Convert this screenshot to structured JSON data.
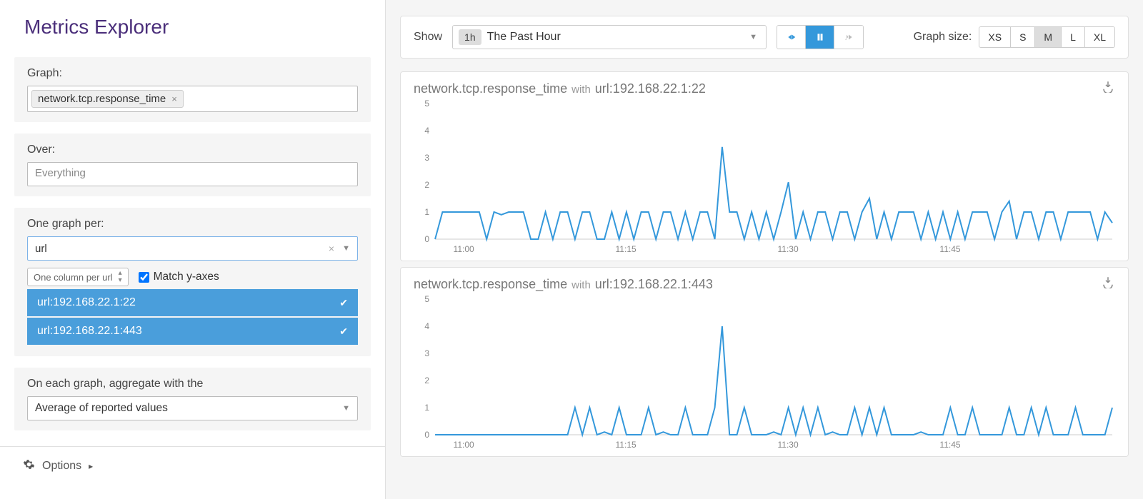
{
  "page_title": "Metrics Explorer",
  "sidebar": {
    "graph": {
      "label": "Graph:",
      "metric_tag": "network.tcp.response_time"
    },
    "over": {
      "label": "Over:",
      "placeholder": "Everything"
    },
    "one_graph_per": {
      "label": "One graph per:",
      "value": "url",
      "column_select": "One column per url",
      "match_y_label": "Match y-axes",
      "match_y_checked": true,
      "dropdown_items": [
        {
          "label": "url:192.168.22.1:22",
          "selected": true
        },
        {
          "label": "url:192.168.22.1:443",
          "selected": true
        }
      ]
    },
    "aggregate": {
      "label": "On each graph, aggregate with the",
      "value": "Average of reported values"
    },
    "options_label": "Options"
  },
  "toolbar": {
    "show_label": "Show",
    "time_badge": "1h",
    "time_text": "The Past Hour",
    "graph_size_label": "Graph size:",
    "sizes": [
      "XS",
      "S",
      "M",
      "L",
      "XL"
    ],
    "active_size": "M",
    "play_state": "paused"
  },
  "charts": [
    {
      "title_main": "network.tcp.response_time",
      "title_sub": "with",
      "title_tag": "url:192.168.22.1:22",
      "y_ticks": [
        0,
        1,
        2,
        3,
        4,
        5
      ],
      "x_ticks": [
        "11:00",
        "11:15",
        "11:30",
        "11:45"
      ],
      "ylim": [
        0,
        5
      ],
      "line_color": "#3498db",
      "grid_color": "#eeeeee",
      "data": [
        0,
        1,
        1,
        1,
        1,
        1,
        1,
        0,
        1,
        0.9,
        1,
        1,
        1,
        0,
        0,
        1,
        0,
        1,
        1,
        0,
        1,
        1,
        0,
        0,
        1,
        0,
        1,
        0,
        1,
        1,
        0,
        1,
        1,
        0,
        1,
        0,
        1,
        1,
        0,
        3.4,
        1,
        1,
        0,
        1,
        0,
        1,
        0,
        1,
        2.1,
        0,
        1,
        0,
        1,
        1,
        0,
        1,
        1,
        0,
        1,
        1.5,
        0,
        1,
        0,
        1,
        1,
        1,
        0,
        1,
        0,
        1,
        0,
        1,
        0,
        1,
        1,
        1,
        0,
        1,
        1.4,
        0,
        1,
        1,
        0,
        1,
        1,
        0,
        1,
        1,
        1,
        1,
        0,
        1,
        0.6
      ]
    },
    {
      "title_main": "network.tcp.response_time",
      "title_sub": "with",
      "title_tag": "url:192.168.22.1:443",
      "y_ticks": [
        0,
        1,
        2,
        3,
        4,
        5
      ],
      "x_ticks": [
        "11:00",
        "11:15",
        "11:30",
        "11:45"
      ],
      "ylim": [
        0,
        5
      ],
      "line_color": "#3498db",
      "grid_color": "#eeeeee",
      "data": [
        0,
        0,
        0,
        0,
        0,
        0,
        0,
        0,
        0,
        0,
        0,
        0,
        0,
        0,
        0,
        0,
        0,
        0,
        0,
        1,
        0,
        1,
        0,
        0.1,
        0,
        1,
        0,
        0,
        0,
        1,
        0,
        0.1,
        0,
        0,
        1,
        0,
        0,
        0,
        1,
        4.0,
        0,
        0,
        1,
        0,
        0,
        0,
        0.1,
        0,
        1,
        0,
        1,
        0,
        1,
        0,
        0.1,
        0,
        0,
        1,
        0,
        1,
        0,
        1,
        0,
        0,
        0,
        0,
        0.1,
        0,
        0,
        0,
        1,
        0,
        0,
        1,
        0,
        0,
        0,
        0,
        1,
        0,
        0,
        1,
        0,
        1,
        0,
        0,
        0,
        1,
        0,
        0,
        0,
        0,
        1
      ]
    }
  ]
}
